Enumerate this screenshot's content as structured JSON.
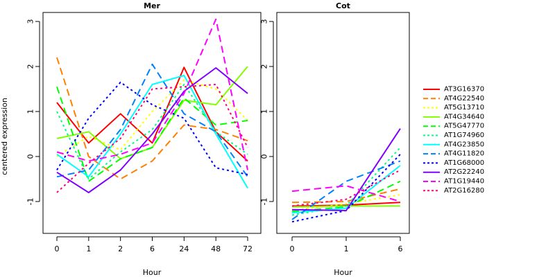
{
  "figure": {
    "ylabel": "centered expression"
  },
  "chart_data": [
    {
      "type": "line",
      "title": "Mer",
      "xlabel": "Hour",
      "ylabel": "centered expression",
      "categories": [
        "0",
        "1",
        "2",
        "6",
        "24",
        "48",
        "72"
      ],
      "yticks": [
        -1,
        0,
        1,
        2,
        3
      ],
      "ylim": [
        -1.7,
        3.15
      ],
      "series": [
        {
          "name": "AT3G16370",
          "color": "#ff0000",
          "dash": "solid",
          "values": [
            1.2,
            0.3,
            0.95,
            0.3,
            1.98,
            0.55,
            -0.1
          ]
        },
        {
          "name": "AT4G22540",
          "color": "#ff8000",
          "dash": "long",
          "values": [
            2.2,
            0.0,
            -0.5,
            -0.1,
            0.7,
            0.6,
            0.35
          ]
        },
        {
          "name": "AT5G13710",
          "color": "#ffff00",
          "dash": "dot",
          "values": [
            0.0,
            0.45,
            0.15,
            1.0,
            1.7,
            1.5,
            0.8
          ]
        },
        {
          "name": "AT4G34640",
          "color": "#80ff00",
          "dash": "solid",
          "values": [
            0.4,
            0.55,
            -0.05,
            0.2,
            1.25,
            1.15,
            2.0
          ]
        },
        {
          "name": "AT5G47770",
          "color": "#00ff00",
          "dash": "long",
          "values": [
            1.55,
            -0.55,
            -0.05,
            0.2,
            1.3,
            0.7,
            0.8
          ]
        },
        {
          "name": "AT1G74960",
          "color": "#00ff80",
          "dash": "dot",
          "values": [
            1.0,
            -0.5,
            0.1,
            0.6,
            1.6,
            0.55,
            0.05
          ]
        },
        {
          "name": "AT4G23850",
          "color": "#00ffff",
          "dash": "solid",
          "values": [
            0.05,
            -0.45,
            0.5,
            1.6,
            1.8,
            0.5,
            -0.7
          ]
        },
        {
          "name": "AT4G11820",
          "color": "#0080ff",
          "dash": "long",
          "values": [
            -0.45,
            -0.3,
            0.6,
            2.05,
            0.95,
            0.55,
            -0.45
          ]
        },
        {
          "name": "AT1G68000",
          "color": "#0000ff",
          "dash": "dot",
          "values": [
            -0.3,
            0.85,
            1.65,
            1.15,
            0.85,
            -0.25,
            -0.4
          ]
        },
        {
          "name": "AT2G22240",
          "color": "#8000ff",
          "dash": "solid",
          "values": [
            -0.35,
            -0.8,
            -0.3,
            0.5,
            1.45,
            1.97,
            1.4
          ]
        },
        {
          "name": "AT1G19440",
          "color": "#ff00ff",
          "dash": "long",
          "values": [
            0.1,
            -0.1,
            0.05,
            0.3,
            1.4,
            3.05,
            -0.3
          ]
        },
        {
          "name": "AT2G16280",
          "color": "#ff0080",
          "dash": "dot",
          "values": [
            -0.8,
            -0.15,
            0.4,
            1.5,
            1.55,
            1.6,
            0.2
          ]
        }
      ]
    },
    {
      "type": "line",
      "title": "Cot",
      "xlabel": "Hour",
      "categories": [
        "0",
        "1",
        "6"
      ],
      "yticks": [
        -1,
        0,
        1,
        2,
        3
      ],
      "ylim": [
        -1.7,
        3.15
      ],
      "series": [
        {
          "name": "AT3G16370",
          "color": "#ff0000",
          "dash": "solid",
          "values": [
            -1.1,
            -1.08,
            -1.02
          ]
        },
        {
          "name": "AT4G22540",
          "color": "#ff8000",
          "dash": "long",
          "values": [
            -1.02,
            -1.0,
            -0.72
          ]
        },
        {
          "name": "AT5G13710",
          "color": "#ffff00",
          "dash": "dot",
          "values": [
            -1.2,
            -1.05,
            -0.85
          ]
        },
        {
          "name": "AT4G34640",
          "color": "#80ff00",
          "dash": "solid",
          "values": [
            -1.12,
            -1.1,
            -1.1
          ]
        },
        {
          "name": "AT5G47770",
          "color": "#00ff00",
          "dash": "long",
          "values": [
            -1.22,
            -1.12,
            -0.55
          ]
        },
        {
          "name": "AT1G74960",
          "color": "#00ff80",
          "dash": "dot",
          "values": [
            -1.3,
            -1.1,
            0.2
          ]
        },
        {
          "name": "AT4G23850",
          "color": "#00ffff",
          "dash": "solid",
          "values": [
            -1.25,
            -1.15,
            -0.2
          ]
        },
        {
          "name": "AT4G11820",
          "color": "#0080ff",
          "dash": "long",
          "values": [
            -1.4,
            -0.55,
            -0.1
          ]
        },
        {
          "name": "AT1G68000",
          "color": "#0000ff",
          "dash": "dot",
          "values": [
            -1.45,
            -1.2,
            0.05
          ]
        },
        {
          "name": "AT2G22240",
          "color": "#8000ff",
          "dash": "solid",
          "values": [
            -1.18,
            -1.2,
            0.62
          ]
        },
        {
          "name": "AT1G19440",
          "color": "#ff00ff",
          "dash": "long",
          "values": [
            -0.77,
            -0.65,
            -1.0
          ]
        },
        {
          "name": "AT2G16280",
          "color": "#ff0080",
          "dash": "dot",
          "values": [
            -1.1,
            -0.95,
            -0.3
          ]
        }
      ]
    }
  ]
}
